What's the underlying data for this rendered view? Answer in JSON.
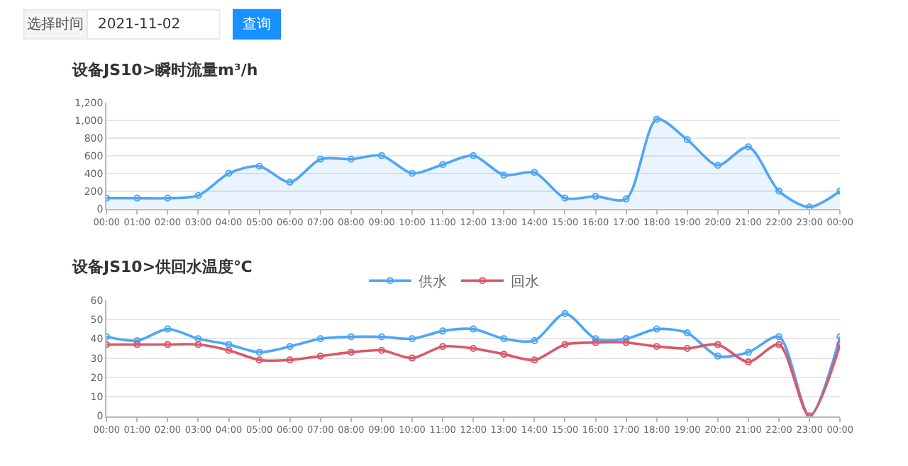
{
  "chart_data": [
    {
      "type": "area",
      "title": "设备JS10>瞬时流量m³/h",
      "annotations": [
        "选择时间",
        "2021-11-02",
        "查询"
      ],
      "categories": [
        "00:00",
        "01:00",
        "02:00",
        "03:00",
        "04:00",
        "05:00",
        "06:00",
        "07:00",
        "08:00",
        "09:00",
        "10:00",
        "11:00",
        "12:00",
        "13:00",
        "14:00",
        "15:00",
        "16:00",
        "17:00",
        "18:00",
        "19:00",
        "20:00",
        "21:00",
        "22:00",
        "23:00",
        "00:00"
      ],
      "series": [
        {
          "color": "#4ea6f7",
          "values": [
            120,
            120,
            120,
            150,
            400,
            480,
            300,
            560,
            560,
            600,
            400,
            500,
            600,
            380,
            410,
            120,
            140,
            110,
            1010,
            780,
            490,
            700,
            200,
            20,
            200
          ]
        }
      ],
      "ylim": [
        0,
        1200
      ],
      "yticks": [
        0,
        200,
        400,
        600,
        800,
        {
          "value": 1000,
          "label": "1,000"
        },
        {
          "value": 1200,
          "label": "1,200"
        }
      ],
      "grid": "y",
      "marker": "circle",
      "legend": false
    },
    {
      "type": "line",
      "title": "设备JS10>供回水温度℃",
      "categories": [
        "00:00",
        "01:00",
        "02:00",
        "03:00",
        "04:00",
        "05:00",
        "06:00",
        "07:00",
        "08:00",
        "09:00",
        "10:00",
        "11:00",
        "12:00",
        "13:00",
        "14:00",
        "15:00",
        "16:00",
        "17:00",
        "18:00",
        "19:00",
        "20:00",
        "21:00",
        "22:00",
        "23:00",
        "00:00"
      ],
      "series": [
        {
          "name": "供水",
          "color": "#4ea6f7",
          "values": [
            41,
            39,
            45,
            40,
            37,
            33,
            36,
            40,
            41,
            41,
            40,
            44,
            45,
            40,
            39,
            53,
            40,
            40,
            45,
            43,
            31,
            33,
            41,
            0,
            41
          ]
        },
        {
          "name": "回水",
          "color": "#d9596a",
          "values": [
            37,
            37,
            37,
            37,
            34,
            29,
            29,
            31,
            33,
            34,
            30,
            36,
            35,
            32,
            29,
            37,
            38,
            38,
            36,
            35,
            37,
            28,
            37,
            0,
            37
          ]
        }
      ],
      "ylim": [
        0,
        60
      ],
      "yticks": [
        0,
        10,
        20,
        30,
        40,
        50,
        60
      ],
      "grid": "y",
      "marker": "circle",
      "legend": "top"
    }
  ]
}
